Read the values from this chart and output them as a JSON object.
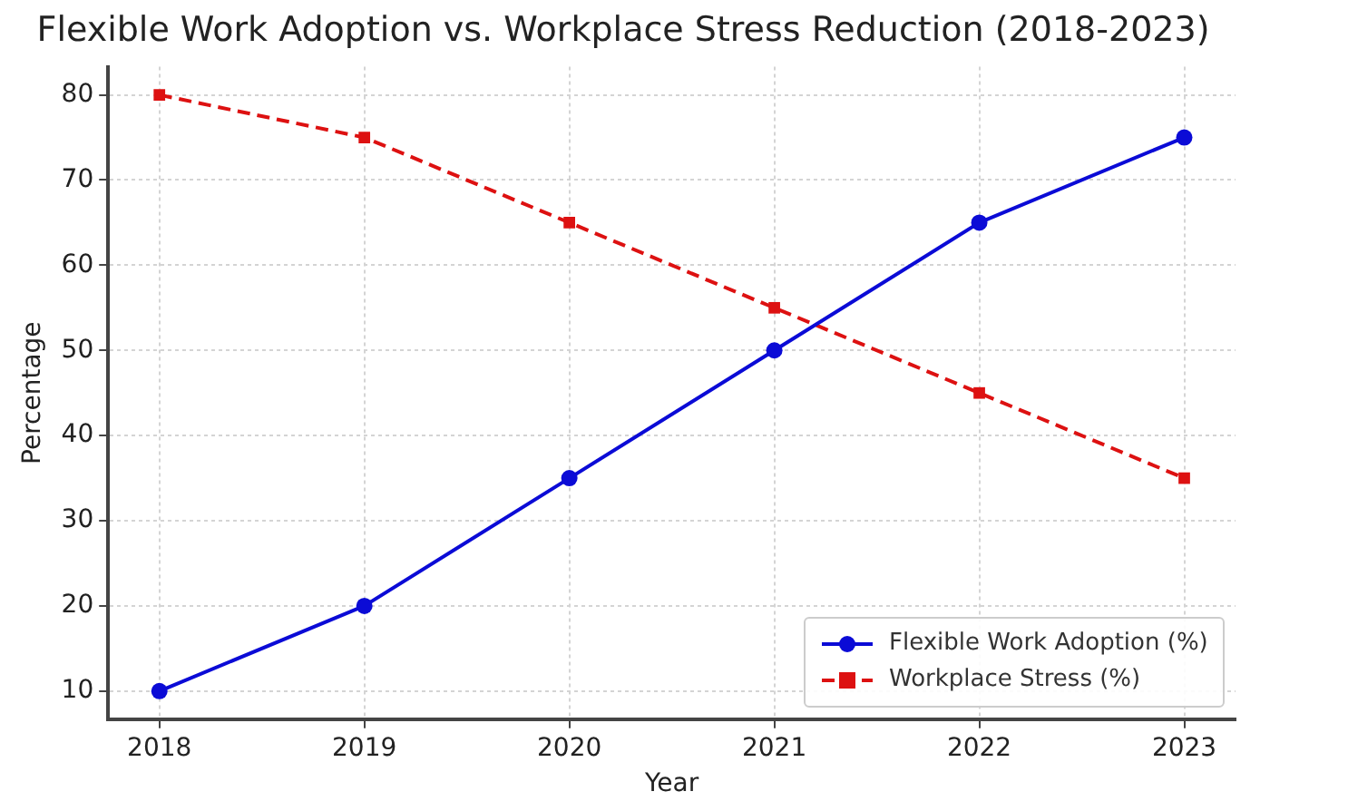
{
  "chart_data": {
    "type": "line",
    "title": "Flexible Work Adoption vs. Workplace Stress Reduction (2018-2023)",
    "xlabel": "Year",
    "ylabel": "Percentage",
    "x": [
      2018,
      2019,
      2020,
      2021,
      2022,
      2023
    ],
    "series": [
      {
        "name": "Flexible Work Adoption (%)",
        "color": "#0b0bd6",
        "values": [
          10,
          20,
          35,
          50,
          65,
          75
        ],
        "marker": "circle",
        "line_style": "solid"
      },
      {
        "name": "Workplace Stress (%)",
        "color": "#dd1111",
        "values": [
          80,
          75,
          65,
          55,
          45,
          35
        ],
        "marker": "square",
        "line_style": "dashed"
      }
    ],
    "xlim": [
      2017.75,
      2023.25
    ],
    "xticks": [
      2018,
      2019,
      2020,
      2021,
      2022,
      2023
    ],
    "ylim": [
      6.7,
      83.3
    ],
    "yticks": [
      10,
      20,
      30,
      40,
      50,
      60,
      70,
      80
    ],
    "grid": true,
    "legend": "bottom right"
  }
}
